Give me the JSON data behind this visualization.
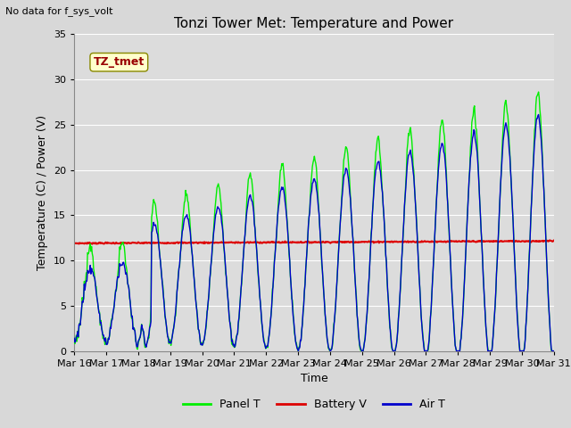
{
  "title": "Tonzi Tower Met: Temperature and Power",
  "no_data_text": "No data for f_sys_volt",
  "ylabel": "Temperature (C) / Power (V)",
  "xlabel": "Time",
  "annotation_text": "TZ_tmet",
  "ylim": [
    0,
    35
  ],
  "yticks": [
    0,
    5,
    10,
    15,
    20,
    25,
    30,
    35
  ],
  "xtick_labels": [
    "Mar 16",
    "Mar 17",
    "Mar 18",
    "Mar 19",
    "Mar 20",
    "Mar 21",
    "Mar 22",
    "Mar 23",
    "Mar 24",
    "Mar 25",
    "Mar 26",
    "Mar 27",
    "Mar 28",
    "Mar 29",
    "Mar 30",
    "Mar 31"
  ],
  "fig_bg_color": "#d8d8d8",
  "plot_bg_color": "#dcdcdc",
  "panel_color": "#00ee00",
  "battery_color": "#dd0000",
  "air_color": "#0000cc",
  "battery_value": 11.9,
  "legend_labels": [
    "Panel T",
    "Battery V",
    "Air T"
  ],
  "grid_color": "#ffffff",
  "title_fontsize": 11,
  "label_fontsize": 9,
  "tick_fontsize": 8,
  "annotation_fontsize": 9
}
